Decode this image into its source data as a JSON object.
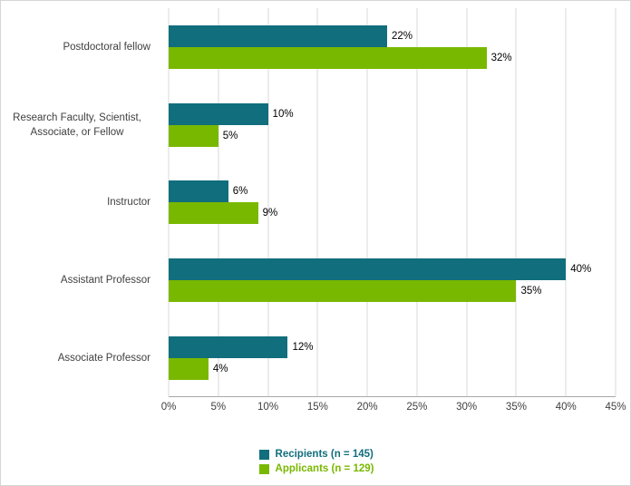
{
  "chart_data": {
    "type": "bar",
    "orientation": "horizontal",
    "title": "",
    "xlabel": "",
    "ylabel": "",
    "categories": [
      "Postdoctoral fellow",
      "Research Faculty, Scientist, Associate, or Fellow",
      "Instructor",
      "Assistant Professor",
      "Associate Professor"
    ],
    "series": [
      {
        "name": "Recipients (n = 145)",
        "color": "#116e7c",
        "values": [
          22,
          10,
          6,
          40,
          12
        ]
      },
      {
        "name": "Applicants (n = 129)",
        "color": "#79b800",
        "values": [
          32,
          5,
          9,
          35,
          4
        ]
      }
    ],
    "value_label_suffix": "%",
    "xlim": [
      0,
      45
    ],
    "x_tick_step": 5,
    "x_tick_labels": [
      "0%",
      "5%",
      "10%",
      "15%",
      "20%",
      "25%",
      "30%",
      "35%",
      "40%",
      "45%"
    ],
    "grid": "vertical",
    "legend_position": "bottom"
  },
  "colors": {
    "background": "#ffffff",
    "border": "#d6d6d6",
    "gridline": "#d9d9d9",
    "axis_line": "#a8a8a8",
    "tick_text": "#3f3f3f",
    "category_text": "#3f3f3f",
    "value_text": "#000000"
  }
}
